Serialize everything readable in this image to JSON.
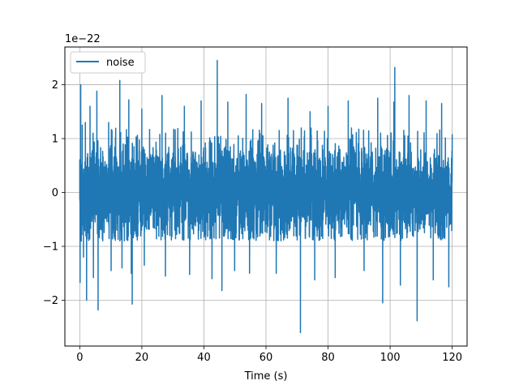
{
  "chart_data": {
    "type": "line",
    "title": "",
    "xlabel": "Time (s)",
    "ylabel": "",
    "y_offset_text": "1e−22",
    "xlim": [
      -4.8,
      124.8
    ],
    "ylim": [
      -2.85,
      2.7
    ],
    "y_scale_factor": 1e-22,
    "x_ticks": [
      0,
      20,
      40,
      60,
      80,
      100,
      120
    ],
    "x_tick_labels": [
      "0",
      "20",
      "40",
      "60",
      "80",
      "100",
      "120"
    ],
    "y_ticks": [
      -2,
      -1,
      0,
      1,
      2
    ],
    "y_tick_labels": [
      "−2",
      "−1",
      "0",
      "1",
      "2"
    ],
    "grid": true,
    "legend_position": "upper-left",
    "series": [
      {
        "name": "noise",
        "color": "#1f77b4",
        "x_start": 0,
        "x_end": 120,
        "typical_band": [
          -0.9,
          1.2
        ],
        "points": [
          [
            0.0,
            0.6
          ],
          [
            0.1,
            -1.67
          ],
          [
            0.3,
            2.0
          ],
          [
            0.5,
            -0.9
          ],
          [
            0.8,
            1.25
          ],
          [
            1.2,
            -1.2
          ],
          [
            1.8,
            1.3
          ],
          [
            2.2,
            -2.0
          ],
          [
            3.3,
            1.6
          ],
          [
            4.4,
            -1.58
          ],
          [
            5.5,
            1.88
          ],
          [
            5.9,
            -2.18
          ],
          [
            9.3,
            1.3
          ],
          [
            10.1,
            -1.45
          ],
          [
            12.9,
            2.08
          ],
          [
            13.6,
            -1.4
          ],
          [
            15.8,
            1.72
          ],
          [
            16.6,
            -1.5
          ],
          [
            16.9,
            -2.07
          ],
          [
            20.0,
            1.55
          ],
          [
            20.8,
            -1.35
          ],
          [
            26.5,
            1.8
          ],
          [
            27.6,
            -1.55
          ],
          [
            33.7,
            1.6
          ],
          [
            35.4,
            -1.52
          ],
          [
            39.1,
            1.7
          ],
          [
            42.6,
            -1.6
          ],
          [
            44.3,
            2.45
          ],
          [
            45.8,
            -1.82
          ],
          [
            47.7,
            1.68
          ],
          [
            49.9,
            -1.45
          ],
          [
            53.6,
            1.82
          ],
          [
            54.7,
            -1.5
          ],
          [
            58.6,
            1.65
          ],
          [
            63.3,
            -1.5
          ],
          [
            67.1,
            1.75
          ],
          [
            71.1,
            -2.6
          ],
          [
            74.2,
            1.5
          ],
          [
            75.7,
            -1.62
          ],
          [
            80.0,
            1.6
          ],
          [
            82.3,
            -1.58
          ],
          [
            86.5,
            1.7
          ],
          [
            91.6,
            -1.45
          ],
          [
            96.0,
            1.75
          ],
          [
            97.6,
            -2.05
          ],
          [
            101.2,
            1.68
          ],
          [
            101.5,
            2.32
          ],
          [
            103.3,
            -1.72
          ],
          [
            106.1,
            1.8
          ],
          [
            108.7,
            -2.38
          ],
          [
            111.6,
            1.7
          ],
          [
            113.9,
            -1.62
          ],
          [
            116.6,
            1.65
          ],
          [
            118.9,
            -1.75
          ],
          [
            120.0,
            0.5
          ]
        ]
      }
    ]
  }
}
